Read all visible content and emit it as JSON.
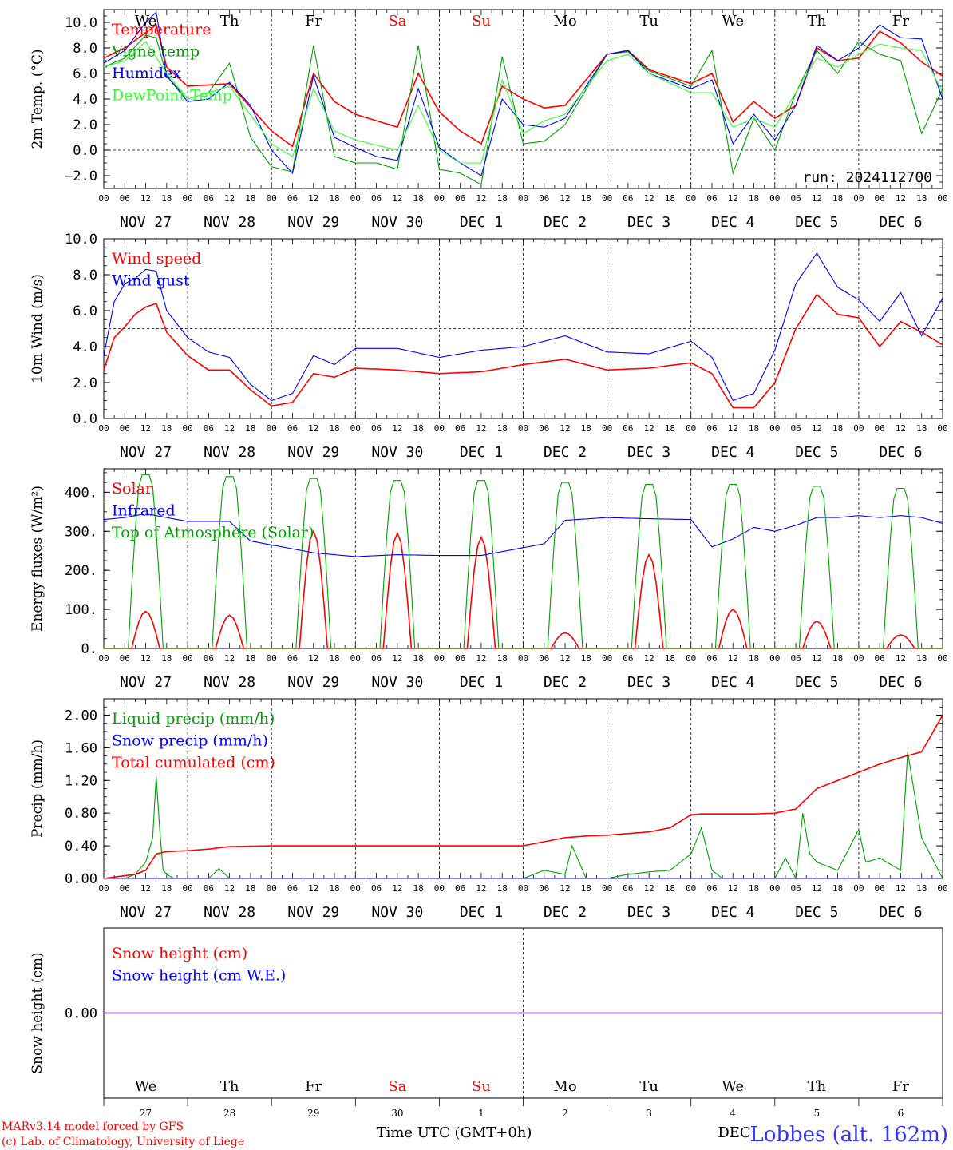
{
  "colors": {
    "red": "#ff0000",
    "green": "#00a000",
    "dark_green": "#1e8a1e",
    "blue": "#0000ff",
    "light_green": "#33ff33",
    "purple": "#8040a0",
    "label_blue": "#3333ff"
  },
  "axes": {
    "days": [
      "We",
      "Th",
      "Fr",
      "Sa",
      "Su",
      "Mo",
      "Tu",
      "We",
      "Th",
      "Fr"
    ],
    "weekend_days": [
      "Sa",
      "Su"
    ],
    "hour_ticks": [
      "00",
      "06",
      "12",
      "18"
    ],
    "date_labels": [
      "NOV 27",
      "NOV 28",
      "NOV 29",
      "NOV 30",
      "DEC  1",
      "DEC  2",
      "DEC  3",
      "DEC  4",
      "DEC  5",
      "DEC  6"
    ],
    "bottom_day_numbers": [
      "27",
      "28",
      "29",
      "30",
      "1",
      "2",
      "3",
      "4",
      "5",
      "6"
    ],
    "xlabel": "Time UTC (GMT+0h)",
    "bottom_month": "DEC"
  },
  "footer": {
    "model": "MARv3.14 model forced by GFS",
    "lab": "(c) Lab. of Climatology, University of Liege",
    "station": "Lobbes (alt. 162m)"
  },
  "chart_data": [
    {
      "type": "line",
      "panel": "temperature",
      "ylabel": "2m Temp. (°C)",
      "ylim": [
        -3,
        11
      ],
      "yticks": [
        -2.0,
        0.0,
        2.0,
        4.0,
        6.0,
        8.0,
        10.0
      ],
      "tick_labels": [
        "−2.0",
        "0.0",
        "2.0",
        "4.0",
        "6.0",
        "8.0",
        "10.0"
      ],
      "ref_line": 0,
      "annotation": "run: 2024112700",
      "x_hours_step": 3,
      "series": [
        {
          "name": "Temperature",
          "color": "red",
          "y_hours": [
            0,
            6,
            12,
            15,
            18,
            24,
            36,
            48,
            54,
            60,
            66,
            72,
            84,
            90,
            96,
            102,
            108,
            114,
            120,
            126,
            132,
            144,
            150,
            156,
            168,
            174,
            180,
            186,
            192,
            198,
            204,
            210,
            216,
            222,
            228,
            234,
            240
          ],
          "values": [
            7.2,
            8.0,
            9.2,
            9.8,
            6.5,
            5.0,
            5.2,
            1.5,
            0.3,
            6.0,
            3.8,
            2.8,
            1.8,
            6.0,
            3.0,
            1.5,
            0.5,
            5.0,
            4.0,
            3.3,
            3.5,
            7.5,
            7.8,
            6.3,
            5.2,
            6.0,
            2.2,
            3.8,
            2.5,
            3.5,
            8.0,
            7.0,
            7.2,
            9.3,
            8.4,
            6.9,
            5.8
          ]
        },
        {
          "name": "Vigne temp",
          "color": "green",
          "y_hours": [
            0,
            6,
            12,
            15,
            18,
            24,
            30,
            36,
            42,
            48,
            54,
            60,
            66,
            72,
            78,
            84,
            90,
            96,
            102,
            108,
            114,
            120,
            126,
            132,
            144,
            150,
            156,
            168,
            174,
            180,
            186,
            192,
            198,
            204,
            210,
            216,
            222,
            228,
            234,
            240
          ],
          "values": [
            6.5,
            7.2,
            9.0,
            8.8,
            5.8,
            4.0,
            4.5,
            6.8,
            1.0,
            -1.3,
            -1.7,
            8.2,
            -0.5,
            -1.0,
            -1.0,
            -1.5,
            8.2,
            -1.5,
            -1.8,
            -2.7,
            7.3,
            0.5,
            0.7,
            2.0,
            7.5,
            7.7,
            6.2,
            5.0,
            7.8,
            -1.8,
            2.5,
            0.0,
            4.5,
            7.8,
            6.0,
            8.5,
            7.5,
            7.0,
            1.3,
            4.8
          ]
        },
        {
          "name": "Humidex",
          "color": "blue",
          "y_hours": [
            0,
            6,
            12,
            15,
            18,
            24,
            30,
            36,
            42,
            48,
            54,
            60,
            66,
            72,
            78,
            84,
            90,
            96,
            102,
            108,
            114,
            120,
            126,
            132,
            144,
            150,
            156,
            168,
            174,
            180,
            186,
            192,
            198,
            204,
            210,
            216,
            222,
            228,
            234,
            240
          ],
          "values": [
            6.8,
            7.8,
            10.0,
            10.8,
            5.8,
            3.8,
            4.0,
            5.3,
            3.5,
            0.0,
            -1.8,
            5.8,
            1.0,
            0.2,
            -0.5,
            -0.8,
            4.8,
            0.2,
            -1.0,
            -2.0,
            4.0,
            2.0,
            1.8,
            2.5,
            7.5,
            7.8,
            6.0,
            4.8,
            5.5,
            0.5,
            2.8,
            0.8,
            3.5,
            8.2,
            7.0,
            8.0,
            9.8,
            8.8,
            8.7,
            4.0
          ]
        },
        {
          "name": "DewPoint Temp",
          "color": "light_green",
          "y_hours": [
            0,
            6,
            12,
            18,
            24,
            36,
            48,
            54,
            60,
            66,
            72,
            84,
            90,
            96,
            102,
            108,
            114,
            120,
            126,
            132,
            144,
            150,
            156,
            168,
            174,
            180,
            186,
            192,
            198,
            204,
            210,
            216,
            222,
            228,
            234,
            240
          ],
          "values": [
            6.5,
            7.0,
            8.5,
            6.0,
            4.0,
            5.0,
            0.5,
            -0.5,
            4.8,
            1.5,
            0.8,
            0.0,
            3.5,
            0.0,
            -1.0,
            -1.0,
            5.5,
            1.3,
            2.3,
            2.8,
            7.0,
            7.5,
            6.0,
            4.5,
            4.5,
            1.8,
            2.5,
            1.8,
            4.5,
            7.2,
            6.5,
            7.5,
            8.3,
            8.0,
            7.8,
            4.5
          ]
        }
      ]
    },
    {
      "type": "line",
      "panel": "wind",
      "ylabel": "10m Wind (m/s)",
      "ylim": [
        0,
        10
      ],
      "yticks": [
        0,
        2,
        4,
        6,
        8,
        10
      ],
      "tick_labels": [
        "0.0",
        "2.0",
        "4.0",
        "6.0",
        "8.0",
        "10.0"
      ],
      "ref_line": 5,
      "series": [
        {
          "name": "Wind speed",
          "color": "red",
          "x_hours": [
            0,
            3,
            6,
            9,
            12,
            15,
            18,
            24,
            30,
            36,
            42,
            48,
            54,
            60,
            66,
            72,
            84,
            96,
            108,
            120,
            132,
            144,
            156,
            168,
            174,
            180,
            186,
            192,
            198,
            204,
            210,
            216,
            222,
            228,
            234,
            240
          ],
          "values": [
            2.7,
            4.5,
            5.1,
            5.8,
            6.2,
            6.4,
            4.8,
            3.5,
            2.7,
            2.7,
            1.6,
            0.7,
            0.9,
            2.5,
            2.3,
            2.8,
            2.7,
            2.5,
            2.6,
            3.0,
            3.3,
            2.7,
            2.8,
            3.1,
            2.5,
            0.6,
            0.6,
            2.0,
            5.0,
            6.9,
            5.8,
            5.6,
            4.0,
            5.4,
            4.8,
            4.1
          ]
        },
        {
          "name": "Wind gust",
          "color": "blue",
          "x_hours": [
            0,
            3,
            6,
            9,
            12,
            15,
            18,
            24,
            30,
            36,
            42,
            48,
            54,
            60,
            66,
            72,
            84,
            96,
            108,
            120,
            132,
            144,
            156,
            168,
            174,
            180,
            186,
            192,
            198,
            204,
            210,
            216,
            222,
            228,
            234,
            240
          ],
          "values": [
            3.5,
            6.5,
            7.5,
            7.8,
            8.3,
            8.2,
            6.0,
            4.5,
            3.7,
            3.4,
            1.9,
            1.0,
            1.4,
            3.5,
            3.0,
            3.9,
            3.9,
            3.4,
            3.8,
            4.0,
            4.6,
            3.7,
            3.6,
            4.3,
            3.4,
            1.0,
            1.4,
            3.8,
            7.5,
            9.2,
            7.3,
            6.6,
            5.4,
            7.0,
            4.6,
            6.7
          ]
        }
      ]
    },
    {
      "type": "line",
      "panel": "energy",
      "ylabel": "Energy fluxes (W/m²)",
      "ylim": [
        0,
        460
      ],
      "yticks": [
        0,
        100,
        200,
        300,
        400
      ],
      "tick_labels": [
        "0.",
        "100.",
        "200.",
        "300.",
        "400."
      ],
      "series": [
        {
          "name": "Solar",
          "color": "red",
          "peaks": [
            95,
            85,
            300,
            295,
            285,
            40,
            240,
            100,
            70,
            35
          ]
        },
        {
          "name": "Infrared",
          "color": "blue",
          "x_hours": [
            0,
            6,
            12,
            18,
            24,
            36,
            42,
            48,
            60,
            72,
            84,
            96,
            108,
            120,
            126,
            132,
            144,
            156,
            168,
            174,
            180,
            186,
            192,
            198,
            204,
            210,
            216,
            222,
            228,
            234,
            240
          ],
          "values": [
            330,
            335,
            345,
            335,
            325,
            325,
            275,
            265,
            245,
            235,
            240,
            238,
            238,
            258,
            268,
            328,
            335,
            332,
            330,
            260,
            280,
            310,
            300,
            315,
            335,
            335,
            340,
            335,
            340,
            335,
            320
          ]
        },
        {
          "name": "Top of Atmosphere (Solar)",
          "color": "green",
          "peaks": [
            445,
            440,
            435,
            430,
            430,
            425,
            420,
            420,
            415,
            410
          ]
        }
      ]
    },
    {
      "type": "line",
      "panel": "precip",
      "ylabel": "Precip (mm/h)",
      "ylim": [
        0,
        2.2
      ],
      "yticks": [
        0,
        0.4,
        0.8,
        1.2,
        1.6,
        2.0
      ],
      "tick_labels": [
        "0.00",
        "0.40",
        "0.80",
        "1.20",
        "1.60",
        "2.00"
      ],
      "series": [
        {
          "name": "Liquid precip (mm/h)",
          "color": "green",
          "x_hours": [
            0,
            6,
            9,
            12,
            14,
            15,
            16,
            17,
            18,
            20,
            24,
            30,
            33,
            36,
            42,
            48,
            60,
            72,
            84,
            96,
            108,
            120,
            126,
            132,
            134,
            138,
            144,
            150,
            156,
            162,
            168,
            171,
            174,
            177,
            180,
            186,
            192,
            195,
            198,
            200,
            202,
            204,
            210,
            216,
            218,
            222,
            228,
            230,
            234,
            240
          ],
          "values": [
            0,
            0,
            0.05,
            0.2,
            0.5,
            1.25,
            0.6,
            0.1,
            0.05,
            0,
            0,
            0,
            0.12,
            0,
            0,
            0,
            0,
            0,
            0,
            0,
            0,
            0,
            0.1,
            0.05,
            0.4,
            0,
            0,
            0.05,
            0.08,
            0.1,
            0.3,
            0.62,
            0.1,
            0,
            0,
            0,
            0,
            0.25,
            0,
            0.8,
            0.3,
            0.2,
            0.1,
            0.6,
            0.2,
            0.25,
            0.1,
            1.55,
            0.5,
            0
          ]
        },
        {
          "name": "Snow precip (mm/h)",
          "color": "blue",
          "x_hours": [
            0,
            240
          ],
          "values": [
            0,
            0
          ]
        },
        {
          "name": "Total cumulated (cm)",
          "color": "red",
          "x_hours": [
            0,
            9,
            12,
            15,
            18,
            24,
            30,
            36,
            48,
            60,
            72,
            84,
            96,
            108,
            120,
            126,
            132,
            138,
            144,
            150,
            156,
            162,
            168,
            171,
            174,
            180,
            186,
            192,
            198,
            204,
            210,
            216,
            222,
            228,
            234,
            240
          ],
          "values": [
            0,
            0.05,
            0.1,
            0.3,
            0.33,
            0.34,
            0.36,
            0.39,
            0.4,
            0.4,
            0.4,
            0.4,
            0.4,
            0.4,
            0.4,
            0.45,
            0.5,
            0.52,
            0.53,
            0.55,
            0.57,
            0.62,
            0.78,
            0.79,
            0.79,
            0.79,
            0.79,
            0.8,
            0.85,
            1.1,
            1.2,
            1.3,
            1.4,
            1.48,
            1.55,
            2.0
          ]
        }
      ]
    },
    {
      "type": "line",
      "panel": "snow",
      "ylabel": "Snow height (cm)",
      "ylim": [
        -1,
        1
      ],
      "yticks": [
        0
      ],
      "tick_labels": [
        "0.00"
      ],
      "series": [
        {
          "name": "Snow height (cm)",
          "color": "red",
          "x_hours": [
            0,
            240
          ],
          "values": [
            0,
            0
          ]
        },
        {
          "name": "Snow height (cm W.E.)",
          "color": "blue",
          "x_hours": [
            0,
            240
          ],
          "values": [
            0,
            0
          ]
        }
      ]
    }
  ]
}
